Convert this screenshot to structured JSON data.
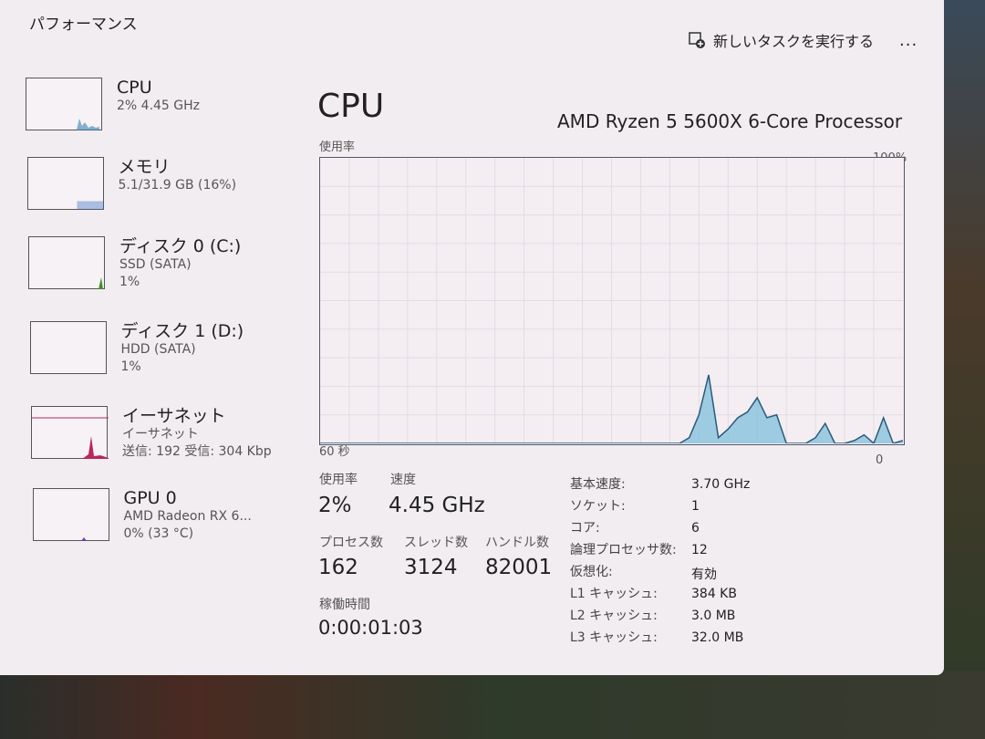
{
  "title": "パフォーマンス",
  "toolbar": {
    "new_task": "新しいタスクを実行する",
    "new_task_icon": "new-task-icon",
    "more": "..."
  },
  "sidebar": [
    {
      "name": "CPU",
      "sub1": "2% 4.45 GHz",
      "sub2": "",
      "color": "#3a7fb8"
    },
    {
      "name": "メモリ",
      "sub1": "5.1/31.9 GB (16%)",
      "sub2": "",
      "color": "#3a6fc8"
    },
    {
      "name": "ディスク 0 (C:)",
      "sub1": "SSD (SATA)",
      "sub2": "1%",
      "color": "#4a8a2a"
    },
    {
      "name": "ディスク 1 (D:)",
      "sub1": "HDD (SATA)",
      "sub2": "1%",
      "color": "#4a8a2a"
    },
    {
      "name": "イーサネット",
      "sub1": "イーサネット",
      "sub2": "送信: 192 受信: 304 Kbp",
      "color": "#b8285a"
    },
    {
      "name": "GPU 0",
      "sub1": "AMD Radeon RX 6...",
      "sub2": "0% (33 °C)",
      "color": "#6a3ab8"
    }
  ],
  "main": {
    "heading": "CPU",
    "processor": "AMD Ryzen 5 5600X 6-Core Processor",
    "graph_label": "使用率",
    "max_label": "100%",
    "time_label": "60 秒",
    "min_label": "0",
    "usage_label": "使用率",
    "usage": "2%",
    "speed_label": "速度",
    "speed": "4.45 GHz",
    "processes_label": "プロセス数",
    "processes": "162",
    "threads_label": "スレッド数",
    "threads": "3124",
    "handles_label": "ハンドル数",
    "handles": "82001",
    "uptime_label": "稼働時間",
    "uptime": "0:00:01:03",
    "details": [
      {
        "k": "基本速度:",
        "v": "3.70 GHz"
      },
      {
        "k": "ソケット:",
        "v": "1"
      },
      {
        "k": "コア:",
        "v": "6"
      },
      {
        "k": "論理プロセッサ数:",
        "v": "12"
      },
      {
        "k": "仮想化:",
        "v": "有効"
      },
      {
        "k": "L1 キャッシュ:",
        "v": "384 KB"
      },
      {
        "k": "L2 キャッシュ:",
        "v": "3.0 MB"
      },
      {
        "k": "L3 キャッシュ:",
        "v": "32.0 MB"
      }
    ]
  },
  "chart_data": {
    "type": "area",
    "xlabel": "60 秒",
    "ylim": [
      0,
      100
    ],
    "xlim": [
      60,
      0
    ],
    "color": "#7fbfdc",
    "values": [
      0,
      0,
      0,
      0,
      0,
      0,
      0,
      0,
      0,
      0,
      0,
      0,
      0,
      0,
      0,
      0,
      0,
      0,
      0,
      0,
      0,
      0,
      0,
      0,
      0,
      0,
      0,
      0,
      0,
      0,
      0,
      0,
      0,
      0,
      0,
      0,
      0,
      0,
      2,
      10,
      24,
      2,
      5,
      9,
      11,
      16,
      9,
      10,
      0,
      0,
      0,
      2,
      7,
      0,
      0,
      1,
      3,
      0,
      9,
      0,
      1
    ]
  }
}
